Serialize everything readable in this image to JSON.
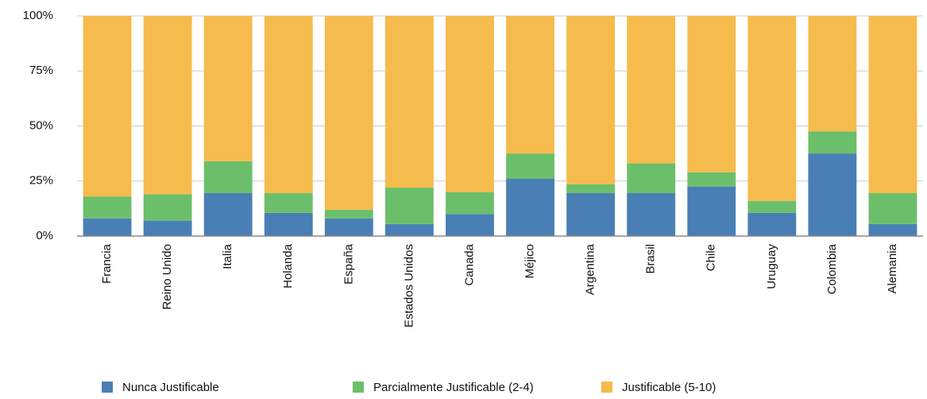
{
  "chart_data": {
    "type": "stacked_bar",
    "categories": [
      "Francia",
      "Reino Unido",
      "Italia",
      "Holanda",
      "España",
      "Estados Unidos",
      "Canada",
      "Méjico",
      "Argentina",
      "Brasil",
      "Chile",
      "Uruguay",
      "Colombia",
      "Alemania"
    ],
    "series": [
      {
        "name": "Nunca Justificable",
        "color": "#4a7fb5",
        "values": [
          8,
          7,
          19.5,
          10.5,
          8,
          5.5,
          10,
          26,
          19.5,
          19.5,
          22.5,
          10.5,
          37.5,
          5.5
        ]
      },
      {
        "name": "Parcialmente Justificable (2-4)",
        "color": "#6cbf6a",
        "values": [
          10,
          12,
          14.5,
          9,
          4,
          16.5,
          10,
          11.5,
          4,
          13.5,
          6.5,
          5.5,
          10,
          14
        ]
      },
      {
        "name": "Justificable (5-10)",
        "color": "#f6bb4d",
        "values": [
          82,
          81,
          66,
          80.5,
          88,
          78,
          80,
          62.5,
          76.5,
          67,
          71,
          84,
          52.5,
          80.5
        ]
      }
    ],
    "ylim": [
      0,
      100
    ],
    "yticks": [
      {
        "value": 0,
        "label": "0%"
      },
      {
        "value": 25,
        "label": "25%"
      },
      {
        "value": 50,
        "label": "50%"
      },
      {
        "value": 75,
        "label": "75%"
      },
      {
        "value": 100,
        "label": "100%"
      }
    ],
    "grid": true
  }
}
